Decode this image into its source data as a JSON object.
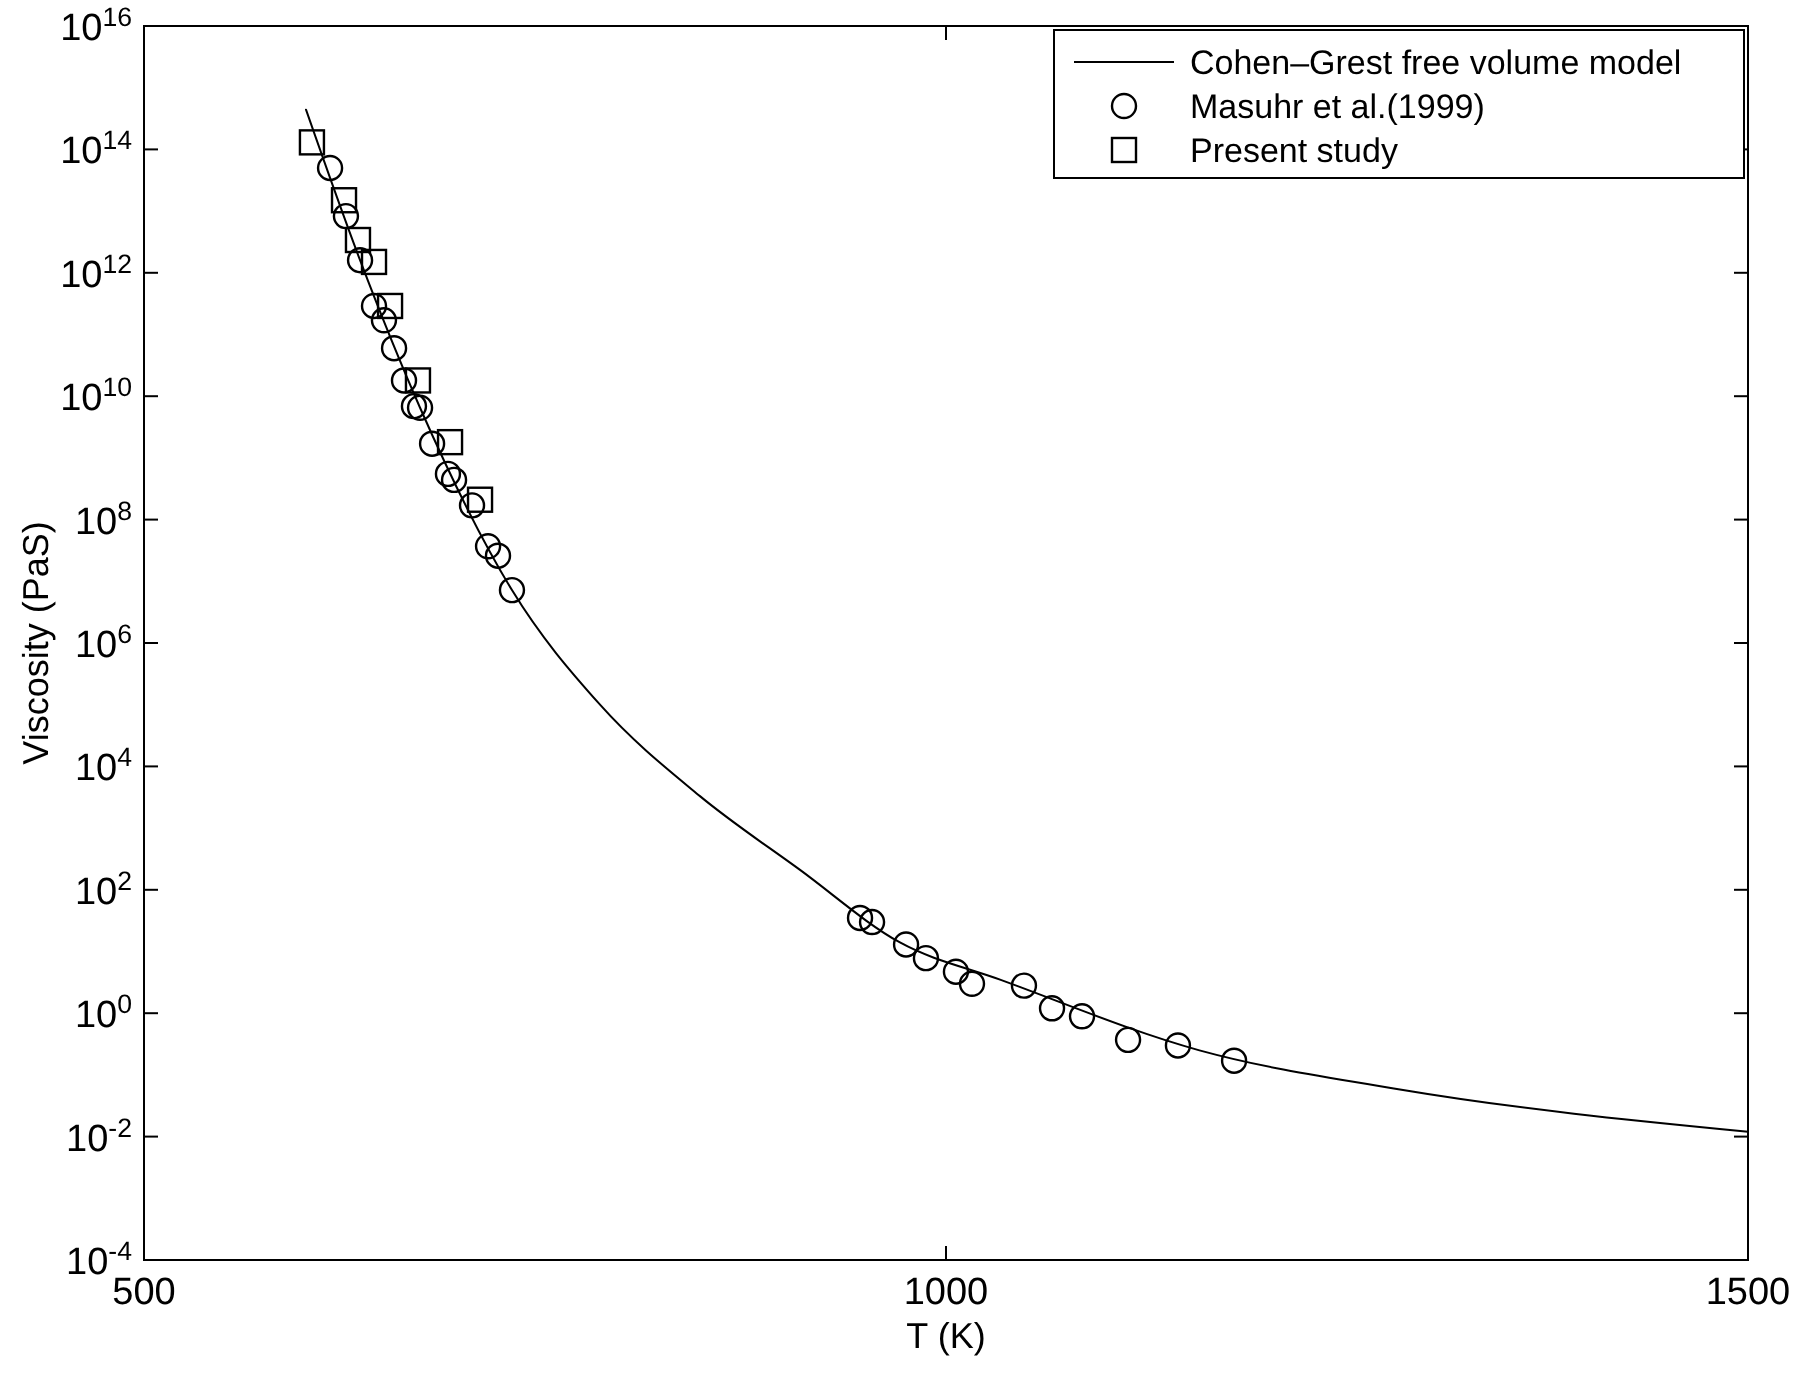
{
  "chart_data": {
    "type": "scatter",
    "xlabel": "T (K)",
    "ylabel": "Viscosity (PaS)",
    "log": "y",
    "grid": false,
    "legend": "top right",
    "xlim": [
      500,
      1500
    ],
    "xticks": [
      500,
      1000,
      1500
    ],
    "ylim": [
      0.0001,
      1e+16
    ],
    "yticks": [
      {
        "value": 0.0001,
        "label": "10$^{-4}$"
      },
      {
        "value": 0.01,
        "label": "10$^{-2}$"
      },
      {
        "value": 1,
        "label": "10$^{0}$"
      },
      {
        "value": 100.0,
        "label": "10$^{2}$"
      },
      {
        "value": 10000.0,
        "label": "10$^{4}$"
      },
      {
        "value": 1000000.0,
        "label": "10$^{6}$"
      },
      {
        "value": 100000000.0,
        "label": "10$^{8}$"
      },
      {
        "value": 10000000000.0,
        "label": "10$^{10}$"
      },
      {
        "value": 1000000000000.0,
        "label": "10$^{12}$"
      },
      {
        "value": 100000000000000.0,
        "label": "10$^{14}$"
      },
      {
        "value": 1e+16,
        "label": "10$^{16}$"
      }
    ],
    "series": [
      {
        "name": "Cohen–Grest free volume model",
        "type": "line",
        "marker": "none",
        "line_style": "solid",
        "color": "#000000",
        "x": [
          601,
          634.7,
          672.1,
          729.4,
          784.3,
          846.6,
          909,
          971.3,
          1033.7,
          1158,
          1283,
          1500
        ],
        "values": [
          440000000000000.0,
          1600000000000.0,
          6500000000.0,
          7200000.0,
          100000.0,
          3300,
          210,
          14,
          3.5,
          0.25,
          0.058,
          0.012
        ]
      },
      {
        "name": "Masuhr et al.(1999)",
        "marker": "circle",
        "color": "#000000",
        "x": [
          616,
          625.9,
          634.7,
          643.4,
          649.6,
          655.9,
          662.1,
          668.3,
          672.1,
          679.6,
          689.5,
          693.3,
          704.5,
          714.5,
          720.7,
          729.4,
          946.4,
          953.9,
          975.1,
          987.5,
          1006.2,
          1016.2,
          1048.6,
          1066.1,
          1084.8,
          1113.5,
          1144.6,
          1179.6
        ],
        "values": [
          50000000000000.0,
          8300000000000.0,
          1600000000000.0,
          290000000000.0,
          170000000000.0,
          60000000000.0,
          18000000000.0,
          6900000000.0,
          6500000000.0,
          1700000000.0,
          550000000.0,
          440000000.0,
          170000000.0,
          37000000.0,
          26000000.0,
          7200000.0,
          35,
          30,
          13,
          7.8,
          4.7,
          3,
          2.8,
          1.2,
          0.89,
          0.37,
          0.3,
          0.17
        ]
      },
      {
        "name": "Present study",
        "marker": "square",
        "color": "#000000",
        "x": [
          604.7,
          624.7,
          633.4,
          643.4,
          653.4,
          670.8,
          690.8,
          709.5
        ],
        "values": [
          130000000000000.0,
          15000000000000.0,
          3400000000000.0,
          1500000000000.0,
          290000000000.0,
          18000000000.0,
          1800000000.0,
          210000000.0
        ]
      }
    ]
  }
}
